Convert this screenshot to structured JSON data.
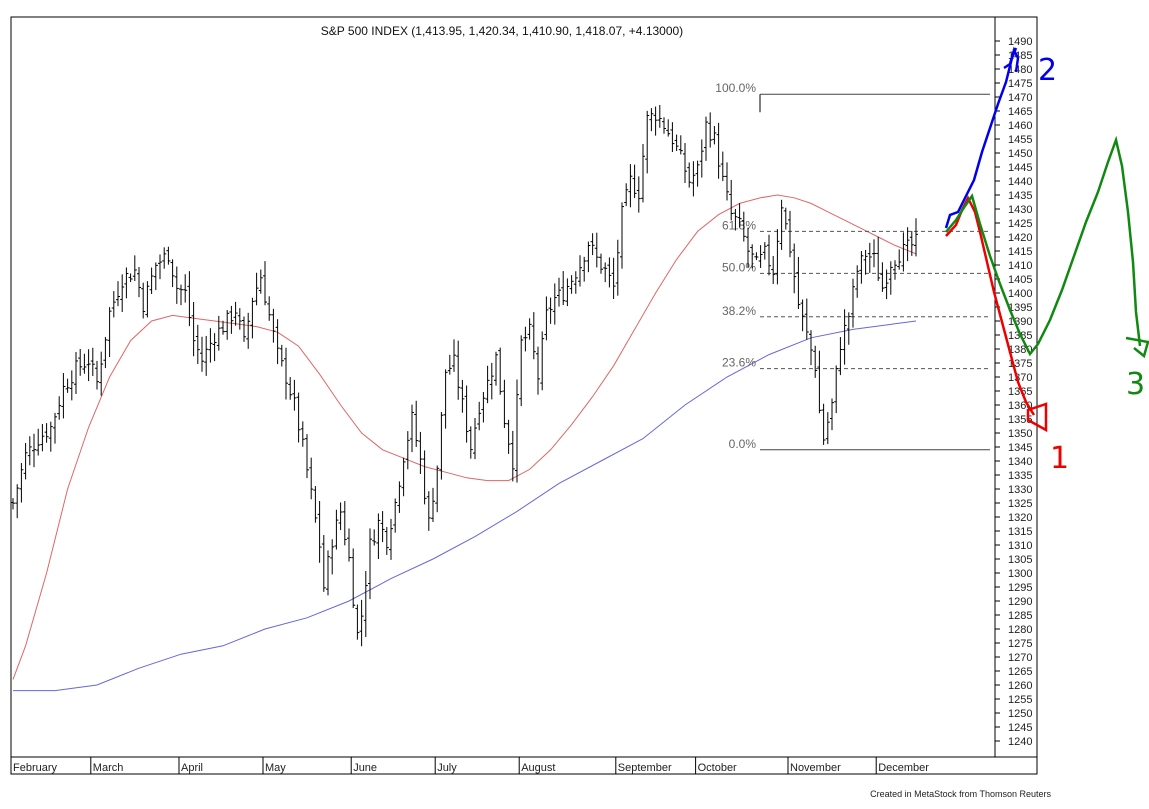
{
  "chart_data": {
    "type": "ohlc",
    "title": "S&P 500 INDEX (1,413.95, 1,420.34, 1,410.90, 1,418.07, +4.13000)",
    "credit": "Created in MetaStock from Thomson Reuters",
    "xlabel": "",
    "ylabel": "",
    "ylim": [
      1235,
      1495
    ],
    "y_ticks": [
      1240,
      1245,
      1250,
      1255,
      1260,
      1265,
      1270,
      1275,
      1280,
      1285,
      1290,
      1295,
      1300,
      1305,
      1310,
      1315,
      1320,
      1325,
      1330,
      1335,
      1340,
      1345,
      1350,
      1355,
      1360,
      1365,
      1370,
      1375,
      1380,
      1385,
      1390,
      1395,
      1400,
      1405,
      1410,
      1415,
      1420,
      1425,
      1430,
      1435,
      1440,
      1445,
      1450,
      1455,
      1460,
      1465,
      1470,
      1475,
      1480,
      1485,
      1490
    ],
    "months": [
      {
        "label": "February",
        "bar": 0
      },
      {
        "label": "March",
        "bar": 19
      },
      {
        "label": "April",
        "bar": 40
      },
      {
        "label": "May",
        "bar": 60
      },
      {
        "label": "June",
        "bar": 81
      },
      {
        "label": "July",
        "bar": 101
      },
      {
        "label": "August",
        "bar": 121
      },
      {
        "label": "September",
        "bar": 144
      },
      {
        "label": "October",
        "bar": 163
      },
      {
        "label": "November",
        "bar": 185
      },
      {
        "label": "December",
        "bar": 206
      }
    ],
    "bar_count": 226,
    "close_anchors": [
      [
        0,
        1325
      ],
      [
        3,
        1342
      ],
      [
        6,
        1348
      ],
      [
        9,
        1352
      ],
      [
        12,
        1366
      ],
      [
        15,
        1373
      ],
      [
        18,
        1376
      ],
      [
        20,
        1368
      ],
      [
        23,
        1393
      ],
      [
        26,
        1405
      ],
      [
        29,
        1408
      ],
      [
        31,
        1396
      ],
      [
        34,
        1410
      ],
      [
        37,
        1414
      ],
      [
        39,
        1402
      ],
      [
        41,
        1400
      ],
      [
        43,
        1383
      ],
      [
        45,
        1376
      ],
      [
        48,
        1385
      ],
      [
        50,
        1388
      ],
      [
        53,
        1394
      ],
      [
        55,
        1382
      ],
      [
        57,
        1398
      ],
      [
        59,
        1406
      ],
      [
        61,
        1392
      ],
      [
        63,
        1378
      ],
      [
        65,
        1370
      ],
      [
        67,
        1360
      ],
      [
        69,
        1345
      ],
      [
        71,
        1328
      ],
      [
        73,
        1310
      ],
      [
        74,
        1295
      ],
      [
        76,
        1312
      ],
      [
        78,
        1322
      ],
      [
        80,
        1305
      ],
      [
        82,
        1278
      ],
      [
        83,
        1285
      ],
      [
        85,
        1310
      ],
      [
        87,
        1318
      ],
      [
        89,
        1312
      ],
      [
        91,
        1325
      ],
      [
        93,
        1342
      ],
      [
        95,
        1355
      ],
      [
        97,
        1340
      ],
      [
        99,
        1318
      ],
      [
        101,
        1338
      ],
      [
        103,
        1372
      ],
      [
        105,
        1375
      ],
      [
        107,
        1360
      ],
      [
        109,
        1345
      ],
      [
        111,
        1360
      ],
      [
        113,
        1368
      ],
      [
        115,
        1377
      ],
      [
        117,
        1355
      ],
      [
        119,
        1340
      ],
      [
        121,
        1382
      ],
      [
        123,
        1386
      ],
      [
        125,
        1370
      ],
      [
        127,
        1392
      ],
      [
        129,
        1398
      ],
      [
        131,
        1400
      ],
      [
        133,
        1405
      ],
      [
        135,
        1410
      ],
      [
        137,
        1418
      ],
      [
        139,
        1412
      ],
      [
        141,
        1408
      ],
      [
        143,
        1402
      ],
      [
        145,
        1428
      ],
      [
        147,
        1440
      ],
      [
        149,
        1436
      ],
      [
        151,
        1462
      ],
      [
        153,
        1464
      ],
      [
        155,
        1460
      ],
      [
        157,
        1455
      ],
      [
        159,
        1448
      ],
      [
        161,
        1440
      ],
      [
        163,
        1444
      ],
      [
        165,
        1460
      ],
      [
        167,
        1455
      ],
      [
        169,
        1440
      ],
      [
        171,
        1428
      ],
      [
        173,
        1424
      ],
      [
        175,
        1415
      ],
      [
        177,
        1410
      ],
      [
        179,
        1414
      ],
      [
        181,
        1408
      ],
      [
        183,
        1432
      ],
      [
        185,
        1416
      ],
      [
        187,
        1396
      ],
      [
        189,
        1385
      ],
      [
        191,
        1374
      ],
      [
        192,
        1358
      ],
      [
        193,
        1348
      ],
      [
        195,
        1360
      ],
      [
        197,
        1382
      ],
      [
        199,
        1392
      ],
      [
        201,
        1408
      ],
      [
        203,
        1414
      ],
      [
        205,
        1412
      ],
      [
        207,
        1402
      ],
      [
        209,
        1411
      ],
      [
        211,
        1414
      ],
      [
        213,
        1416
      ],
      [
        215,
        1418
      ]
    ],
    "fibonacci": [
      {
        "label": "100.0%",
        "value": 1471
      },
      {
        "label": "61.8%",
        "value": 1422
      },
      {
        "label": "50.0%",
        "value": 1407
      },
      {
        "label": "38.2%",
        "value": 1391.5
      },
      {
        "label": "23.6%",
        "value": 1373
      },
      {
        "label": "0.0%",
        "value": 1344
      }
    ],
    "moving_averages": [
      {
        "color": "#e06666",
        "points": [
          [
            0,
            1262
          ],
          [
            3,
            1274
          ],
          [
            8,
            1300
          ],
          [
            13,
            1330
          ],
          [
            18,
            1352
          ],
          [
            23,
            1370
          ],
          [
            28,
            1383
          ],
          [
            33,
            1390
          ],
          [
            38,
            1392
          ],
          [
            43,
            1391
          ],
          [
            48,
            1390
          ],
          [
            53,
            1389
          ],
          [
            58,
            1388
          ],
          [
            63,
            1386
          ],
          [
            68,
            1381
          ],
          [
            73,
            1371
          ],
          [
            78,
            1360
          ],
          [
            83,
            1350
          ],
          [
            88,
            1344
          ],
          [
            93,
            1341
          ],
          [
            98,
            1338
          ],
          [
            103,
            1336
          ],
          [
            108,
            1334
          ],
          [
            113,
            1333
          ],
          [
            118,
            1333
          ],
          [
            123,
            1337
          ],
          [
            128,
            1344
          ],
          [
            133,
            1353
          ],
          [
            138,
            1363
          ],
          [
            143,
            1374
          ],
          [
            148,
            1387
          ],
          [
            153,
            1400
          ],
          [
            158,
            1412
          ],
          [
            163,
            1422
          ],
          [
            168,
            1428
          ],
          [
            173,
            1432
          ],
          [
            178,
            1434
          ],
          [
            182,
            1435
          ],
          [
            186,
            1434
          ],
          [
            190,
            1432
          ],
          [
            194,
            1429
          ],
          [
            198,
            1426
          ],
          [
            202,
            1423
          ],
          [
            206,
            1420
          ],
          [
            210,
            1417
          ],
          [
            215,
            1414
          ]
        ]
      },
      {
        "color": "#6666dd",
        "points": [
          [
            0,
            1258
          ],
          [
            10,
            1258
          ],
          [
            20,
            1260
          ],
          [
            30,
            1266
          ],
          [
            40,
            1271
          ],
          [
            50,
            1274
          ],
          [
            60,
            1280
          ],
          [
            70,
            1284
          ],
          [
            80,
            1290
          ],
          [
            90,
            1298
          ],
          [
            100,
            1305
          ],
          [
            110,
            1313
          ],
          [
            120,
            1322
          ],
          [
            130,
            1332
          ],
          [
            140,
            1340
          ],
          [
            150,
            1348
          ],
          [
            160,
            1360
          ],
          [
            170,
            1370
          ],
          [
            180,
            1378
          ],
          [
            190,
            1384
          ],
          [
            200,
            1387
          ],
          [
            210,
            1389
          ],
          [
            215,
            1390
          ]
        ]
      }
    ],
    "annotations": [
      {
        "label": "1",
        "color": "#ee0000"
      },
      {
        "label": "2",
        "color": "#0000ee"
      },
      {
        "label": "3",
        "color": "#118811"
      }
    ]
  }
}
